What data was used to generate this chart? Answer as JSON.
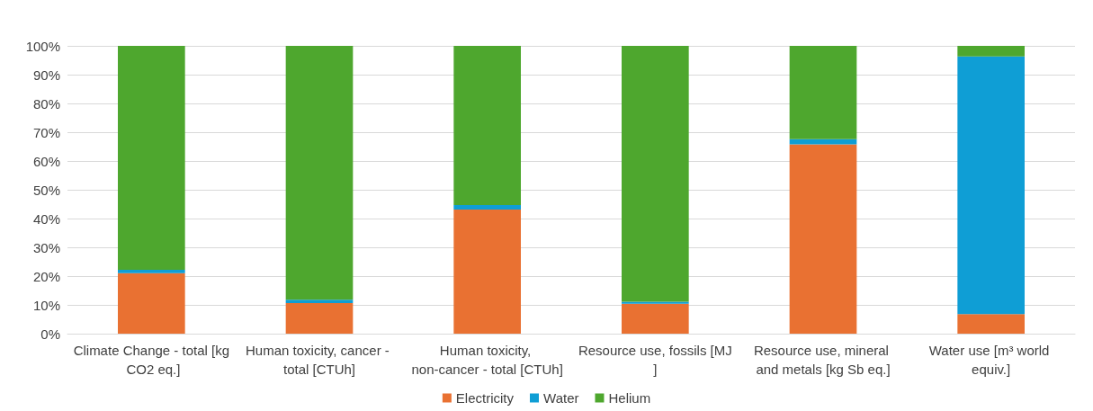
{
  "chart_data": {
    "type": "bar",
    "stacked": true,
    "categories": [
      "Climate Change - total [kg CO2 eq.]",
      "Human toxicity, cancer - total [CTUh]",
      "Human toxicity, non-cancer - total [CTUh]",
      "Resource use, fossils [MJ]",
      "Resource use, mineral and metals [kg Sb eq.]",
      "Water use [m³ world equiv.]"
    ],
    "series": [
      {
        "name": "Electricity",
        "color": "#e97132",
        "values": [
          21.0,
          10.6,
          43.1,
          10.4,
          65.8,
          6.8
        ]
      },
      {
        "name": "Water",
        "color": "#0f9ed5",
        "values": [
          1.2,
          1.2,
          1.6,
          0.7,
          1.8,
          89.5
        ]
      },
      {
        "name": "Helium",
        "color": "#4ea72e",
        "values": [
          77.8,
          88.2,
          55.3,
          88.9,
          32.4,
          3.7
        ]
      }
    ],
    "ylim": [
      0,
      100
    ],
    "yticks": [
      {
        "value": 0,
        "label": "0%"
      },
      {
        "value": 10,
        "label": "10%"
      },
      {
        "value": 20,
        "label": "20%"
      },
      {
        "value": 30,
        "label": "30%"
      },
      {
        "value": 40,
        "label": "40%"
      },
      {
        "value": 50,
        "label": "50%"
      },
      {
        "value": 60,
        "label": "60%"
      },
      {
        "value": 70,
        "label": "70%"
      },
      {
        "value": 80,
        "label": "80%"
      },
      {
        "value": 90,
        "label": "90%"
      },
      {
        "value": 100,
        "label": "100%"
      }
    ],
    "grid": "y",
    "legend": "bottom"
  }
}
